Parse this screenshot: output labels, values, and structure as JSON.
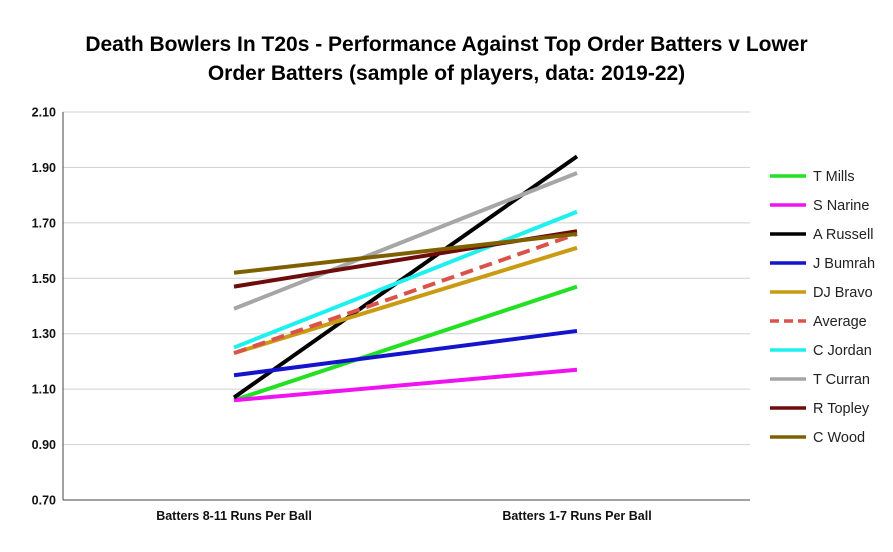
{
  "chart_data": {
    "type": "line",
    "title_lines": [
      "Death Bowlers In T20s - Performance Against Top Order Batters v Lower",
      "Order Batters (sample of players, data: 2019-22)"
    ],
    "categories": [
      "Batters 8-11 Runs Per Ball",
      "Batters 1-7 Runs Per Ball"
    ],
    "ylim": [
      0.7,
      2.1
    ],
    "yticks": [
      "0.70",
      "0.90",
      "1.10",
      "1.30",
      "1.50",
      "1.70",
      "1.90",
      "2.10"
    ],
    "grid": true,
    "legend_position": "right",
    "series": [
      {
        "name": "T Mills",
        "values": [
          1.06,
          1.47
        ],
        "color": "#22e022",
        "dashed": false
      },
      {
        "name": "S Narine",
        "values": [
          1.06,
          1.17
        ],
        "color": "#f012f0",
        "dashed": false
      },
      {
        "name": "A Russell",
        "values": [
          1.07,
          1.94
        ],
        "color": "#000000",
        "dashed": false
      },
      {
        "name": "J Bumrah",
        "values": [
          1.15,
          1.31
        ],
        "color": "#1414cc",
        "dashed": false
      },
      {
        "name": "DJ Bravo",
        "values": [
          1.23,
          1.61
        ],
        "color": "#c99a12",
        "dashed": false
      },
      {
        "name": "Average",
        "values": [
          1.23,
          1.66
        ],
        "color": "#d9534a",
        "dashed": true
      },
      {
        "name": "C Jordan",
        "values": [
          1.25,
          1.74
        ],
        "color": "#1ef0f0",
        "dashed": false
      },
      {
        "name": "T Curran",
        "values": [
          1.39,
          1.88
        ],
        "color": "#a6a6a6",
        "dashed": false
      },
      {
        "name": "R Topley",
        "values": [
          1.47,
          1.67
        ],
        "color": "#6e0b0b",
        "dashed": false
      },
      {
        "name": "C Wood",
        "values": [
          1.52,
          1.66
        ],
        "color": "#7f6000",
        "dashed": false
      }
    ]
  }
}
